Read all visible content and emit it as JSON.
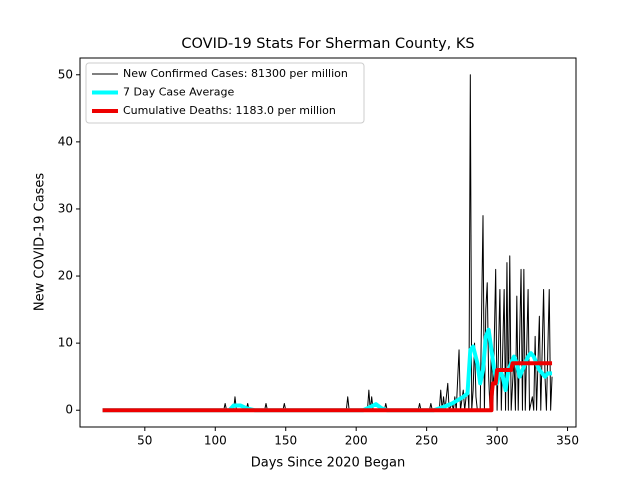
{
  "chart_data": {
    "type": "line",
    "title": "COVID-19 Stats For Sherman County, KS",
    "xlabel": "Days Since 2020 Began",
    "ylabel": "New COVID-19 Cases",
    "xlim": [
      4,
      356
    ],
    "xticks": [
      50,
      100,
      150,
      200,
      250,
      300,
      350
    ],
    "ylim": [
      -2.5,
      52.5
    ],
    "yticks": [
      0,
      10,
      20,
      30,
      40,
      50
    ],
    "legend": "upper left",
    "series": [
      {
        "name": "New Confirmed Cases: 81300 per million",
        "color": "#000000",
        "width": 1,
        "x": [
          20,
          106,
          107,
          108,
          113,
          114,
          115,
          122,
          123,
          124,
          135,
          136,
          137,
          148,
          149,
          150,
          193,
          194,
          195,
          208,
          209,
          210,
          211,
          212,
          220,
          221,
          222,
          244,
          245,
          246,
          252,
          253,
          254,
          259,
          260,
          261,
          262,
          263,
          265,
          266,
          268,
          269,
          270,
          271,
          273,
          274,
          276,
          277,
          279,
          280,
          281,
          282,
          283,
          284,
          285,
          286,
          288,
          290,
          291,
          292,
          293,
          294,
          295,
          296,
          297,
          299,
          300,
          302,
          303,
          305,
          306,
          307,
          308,
          309,
          310,
          312,
          313,
          314,
          315,
          317,
          318,
          319,
          320,
          322,
          323,
          325,
          326,
          327,
          328,
          330,
          331,
          333,
          334,
          335,
          337,
          338,
          339
        ],
        "values": [
          0,
          0,
          1,
          0,
          0,
          2,
          0,
          0,
          1,
          0,
          0,
          1,
          0,
          0,
          1,
          0,
          0,
          2,
          0,
          0,
          3,
          0,
          2,
          0,
          0,
          1,
          0,
          0,
          1,
          0,
          0,
          1,
          0,
          0,
          3,
          0,
          2,
          0,
          4,
          0,
          1,
          0,
          2,
          0,
          9,
          0,
          3,
          0,
          4,
          0,
          50,
          0,
          3,
          10,
          2,
          0,
          0,
          29,
          0,
          15,
          19,
          5,
          0,
          10,
          0,
          21,
          0,
          18,
          0,
          18,
          0,
          22,
          0,
          23,
          0,
          8,
          0,
          17,
          0,
          21,
          0,
          21,
          0,
          18,
          0,
          2,
          0,
          11,
          0,
          14,
          0,
          18,
          5,
          0,
          18,
          0,
          5
        ]
      },
      {
        "name": "7 Day Case Average",
        "color": "#00ffff",
        "width": 4,
        "x": [
          20,
          110,
          113,
          118,
          122,
          128,
          205,
          210,
          214,
          218,
          222,
          255,
          262,
          268,
          272,
          276,
          279,
          281,
          283,
          286,
          288,
          290,
          292,
          294,
          296,
          298,
          300,
          302,
          304,
          306,
          308,
          310,
          312,
          314,
          316,
          318,
          320,
          322,
          324,
          326,
          328,
          330,
          332,
          334,
          336,
          339
        ],
        "values": [
          0,
          0,
          0.7,
          0.7,
          0.3,
          0,
          0,
          0.5,
          0.9,
          0.3,
          0,
          0,
          0.5,
          1,
          1.5,
          2,
          2.5,
          9,
          9.5,
          7,
          4,
          6,
          11,
          12,
          9,
          6,
          4,
          6,
          5,
          3,
          6,
          7,
          8,
          7,
          5,
          6,
          7,
          8,
          8.5,
          8,
          7,
          6,
          5.5,
          5,
          5.5,
          5.5
        ]
      },
      {
        "name": "Cumulative Deaths: 1183.0 per million",
        "color": "#ee0000",
        "width": 4,
        "x": [
          20,
          296,
          296,
          297,
          299,
          300,
          310,
          311,
          339
        ],
        "values": [
          0,
          0,
          2,
          4,
          4,
          6,
          6,
          7,
          7
        ]
      }
    ]
  }
}
